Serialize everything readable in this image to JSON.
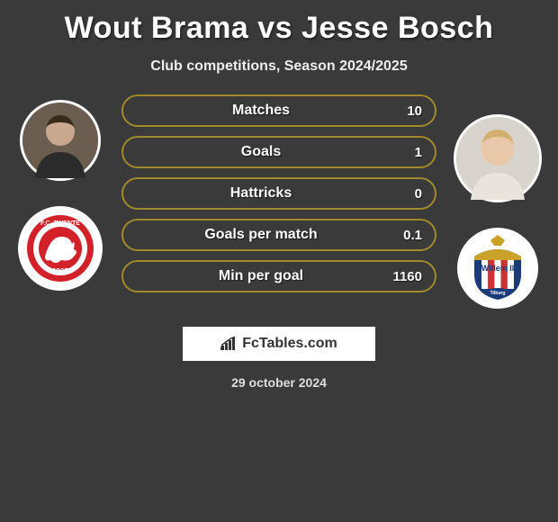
{
  "title": "Wout Brama vs Jesse Bosch",
  "subtitle": "Club competitions, Season 2024/2025",
  "date": "29 october 2024",
  "logo_text": "FcTables.com",
  "pill_border_color": "#a08a2c",
  "pill_text_color": "#ffffff",
  "background_color": "#3a3a3a",
  "player_left": {
    "name": "Wout Brama",
    "avatar_bg": "#7a6a5a",
    "avatar_size": 90,
    "crest_size": 94,
    "crest_bg": "#ffffff",
    "crest_inner": "#d22128",
    "crest_text": "1965"
  },
  "player_right": {
    "name": "Jesse Bosch",
    "avatar_bg": "#cfbfa8",
    "avatar_size": 98,
    "crest_size": 90,
    "crest_bg": "#ffffff",
    "crest_top": "#c9a227",
    "crest_stripe1": "#1a3a7a",
    "crest_stripe2": "#c33",
    "crest_text": "Willem II"
  },
  "stats": [
    {
      "label": "Matches",
      "value": "10"
    },
    {
      "label": "Goals",
      "value": "1"
    },
    {
      "label": "Hattricks",
      "value": "0"
    },
    {
      "label": "Goals per match",
      "value": "0.1"
    },
    {
      "label": "Min per goal",
      "value": "1160"
    }
  ]
}
